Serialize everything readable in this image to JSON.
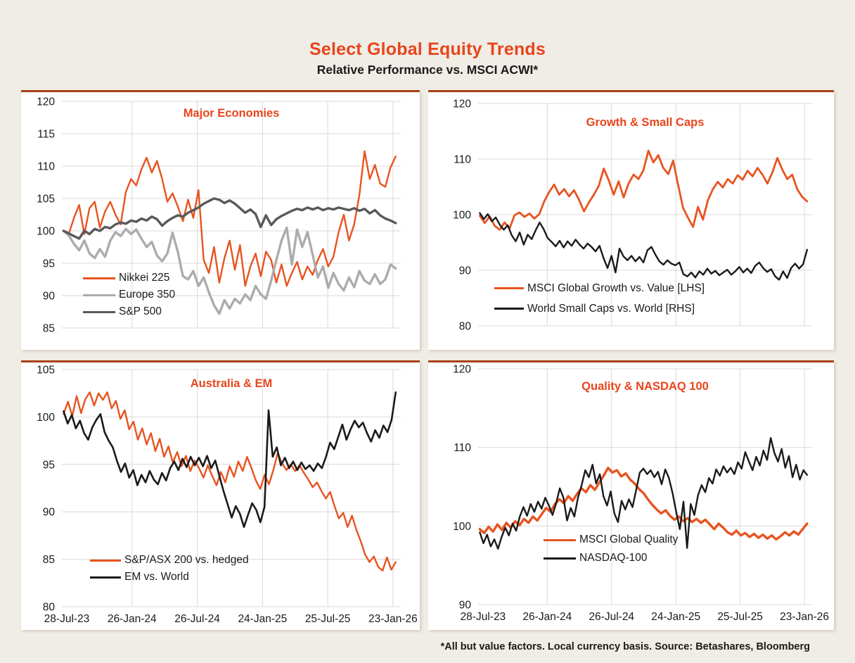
{
  "header": {
    "title": "Select Global Equity Trends",
    "subtitle": "Relative Performance vs. MSCI ACWI*"
  },
  "footnote": "*All but value factors. Local currency basis.  Source: Betashares, Bloomberg",
  "colors": {
    "accent_orange": "#e75420",
    "title_orange": "#e8451c",
    "light_gray": "#acacac",
    "dark_gray": "#595959",
    "black": "#1a1a1a",
    "grid": "#d9d9d9",
    "page_bg": "#f0ede6",
    "panel_bg": "#ffffff",
    "panel_top_border": "#a8421a"
  },
  "x_tick_labels": [
    "28-Jul-23",
    "26-Jan-24",
    "26-Jul-24",
    "24-Jan-25",
    "25-Jul-25",
    "23-Jan-26"
  ],
  "chart_data": [
    {
      "type": "line",
      "title": "Major Economies",
      "ylim": [
        85,
        120
      ],
      "yticks": [
        85,
        90,
        95,
        100,
        105,
        110,
        115,
        120
      ],
      "x_axis_labels_shown": false,
      "grid": true,
      "legend_position": "lower-left",
      "series": [
        {
          "name": "Nikkei 225",
          "color": "#e75420",
          "values": [
            100,
            99.5,
            102,
            104,
            99.5,
            103.5,
            104.5,
            100.5,
            103,
            104.5,
            102.5,
            101,
            106,
            108,
            107,
            109.5,
            111.3,
            109,
            110.8,
            108,
            104.5,
            105.8,
            103.8,
            101.5,
            104.8,
            102,
            106.3,
            95.5,
            93.5,
            97.5,
            92,
            95.8,
            98.5,
            94,
            97.8,
            91.5,
            94.5,
            96.5,
            93,
            96.8,
            95.5,
            92,
            94.8,
            91.5,
            93.5,
            95.2,
            92.5,
            94.5,
            93.2,
            95.5,
            97.2,
            94.5,
            96,
            99.8,
            102.5,
            98.5,
            101,
            105.5,
            112.3,
            108,
            110.2,
            107.3,
            106.8,
            109.8,
            111.5
          ]
        },
        {
          "name": "Europe 350",
          "color": "#acacac",
          "values": [
            100,
            99.3,
            98,
            97,
            98.5,
            96.5,
            95.8,
            97.2,
            96,
            98.5,
            99.8,
            99.2,
            100.3,
            99.5,
            100.2,
            98.8,
            97.5,
            98.3,
            96.2,
            95.3,
            96.5,
            99.7,
            96.8,
            93,
            92.5,
            93.8,
            91.5,
            92.8,
            90.5,
            88.5,
            87.2,
            89.3,
            88,
            89.5,
            88.8,
            90.2,
            89.3,
            91.5,
            90.2,
            89.5,
            92.3,
            95.5,
            98.5,
            100.5,
            94.8,
            100.2,
            97.5,
            99.8,
            96.3,
            92.8,
            94.5,
            91.2,
            93.5,
            91.8,
            90.8,
            92.8,
            91.3,
            93.8,
            92.3,
            91.8,
            93.3,
            91.8,
            92.5,
            94.8,
            94.2
          ]
        },
        {
          "name": "S&P 500",
          "color": "#595959",
          "values": [
            100,
            99.6,
            99.2,
            98.8,
            100,
            99.5,
            100.3,
            100,
            100.6,
            100.4,
            101,
            101.3,
            101.1,
            101.6,
            101.4,
            101.9,
            101.6,
            102.2,
            101.8,
            100.8,
            101.5,
            102,
            102.4,
            102.2,
            102.8,
            103.2,
            103.6,
            104.2,
            104.6,
            105,
            104.8,
            104.3,
            104.7,
            104.2,
            103.5,
            102.8,
            103.3,
            102.6,
            100.6,
            102.4,
            100.9,
            101.8,
            102.3,
            102.7,
            103.1,
            103.4,
            103.2,
            103.6,
            103.3,
            103.6,
            103.2,
            103.5,
            103.3,
            103.6,
            103.4,
            103.2,
            103.5,
            103.1,
            103.4,
            102.7,
            103.2,
            102.4,
            101.9,
            101.6,
            101.2
          ]
        }
      ]
    },
    {
      "type": "line",
      "title": "Growth & Small Caps",
      "ylim": [
        80,
        120
      ],
      "yticks": [
        80,
        90,
        100,
        110,
        120
      ],
      "x_axis_labels_shown": false,
      "grid": true,
      "legend_position": "lower-left",
      "series": [
        {
          "name": "MSCI Global Growth vs. Value [LHS]",
          "color": "#e75420",
          "values": [
            99.8,
            98.5,
            99.7,
            98,
            97.3,
            98.6,
            97.5,
            99.9,
            100.4,
            99.6,
            100.2,
            99.3,
            100.1,
            102.4,
            104.1,
            105.4,
            103.6,
            104.6,
            103.3,
            104.4,
            102.7,
            100.6,
            102.2,
            103.6,
            105.2,
            108.3,
            106.2,
            103.6,
            106,
            103.1,
            105.6,
            107.2,
            106.4,
            108,
            111.5,
            109.4,
            110.7,
            108.4,
            107.3,
            109.7,
            105.3,
            101.2,
            99.4,
            97.8,
            101.4,
            99.1,
            102.6,
            104.6,
            105.9,
            104.9,
            106.4,
            105.6,
            107.1,
            106.3,
            107.9,
            106.9,
            108.4,
            107.2,
            105.6,
            107.6,
            110.2,
            108.1,
            106.4,
            107.2,
            104.6,
            103.2,
            102.4
          ]
        },
        {
          "name": "World Small Caps vs. World [RHS]",
          "color": "#1a1a1a",
          "values": [
            100.3,
            99.2,
            100.1,
            98.8,
            99.5,
            98.2,
            97.3,
            98.1,
            96.3,
            95.2,
            96.8,
            94.6,
            96.4,
            95.6,
            97.2,
            98.6,
            97.4,
            95.8,
            95.1,
            94.3,
            95.3,
            94.1,
            95.2,
            94.4,
            95.5,
            94.6,
            93.9,
            94.8,
            94.2,
            93.4,
            94.4,
            92.2,
            90.4,
            92.6,
            89.6,
            93.9,
            92.5,
            91.8,
            92.6,
            91.6,
            92.4,
            91.4,
            93.6,
            94.2,
            92.8,
            91.6,
            91,
            91.8,
            91.2,
            90.9,
            91.4,
            89.3,
            88.9,
            89.6,
            88.7,
            89.8,
            89.2,
            90.3,
            89.4,
            89.9,
            89.1,
            89.6,
            90.1,
            89.2,
            89.8,
            90.6,
            89.6,
            90.3,
            89.5,
            90.8,
            91.4,
            90.4,
            89.7,
            90.2,
            88.9,
            88.3,
            89.8,
            88.6,
            90.4,
            91.2,
            90.3,
            91.1,
            93.7
          ]
        }
      ]
    },
    {
      "type": "line",
      "title": "Australia & EM",
      "ylim": [
        80,
        105
      ],
      "yticks": [
        80,
        85,
        90,
        95,
        100,
        105
      ],
      "x_axis_labels_shown": true,
      "grid": true,
      "legend_position": "lower-left",
      "series": [
        {
          "name": "S&P/ASX 200 vs. hedged",
          "color": "#e75420",
          "values": [
            100.3,
            101.6,
            100.1,
            102.2,
            100.4,
            101.9,
            102.6,
            101.2,
            102.5,
            101.8,
            102.6,
            100.9,
            101.7,
            99.8,
            100.7,
            98.7,
            99.5,
            97.6,
            98.8,
            97.1,
            98.3,
            96.4,
            97.7,
            95.8,
            96.9,
            95.2,
            96.3,
            94.8,
            95.9,
            94.3,
            95.4,
            94.6,
            93.6,
            94.9,
            93.8,
            92.8,
            94.2,
            93.1,
            94.8,
            93.7,
            95.3,
            94.3,
            95.8,
            94.6,
            93.3,
            92.4,
            93.9,
            92.9,
            94.4,
            96.2,
            95.1,
            94.4,
            95,
            94.3,
            94.9,
            94.1,
            93.4,
            92.6,
            93.1,
            92.2,
            91.4,
            92.1,
            90.6,
            89.3,
            89.9,
            88.4,
            89.6,
            88.1,
            86.9,
            85.5,
            84.7,
            85.3,
            84.2,
            83.8,
            85.2,
            83.9,
            84.7
          ]
        },
        {
          "name": "EM vs. World",
          "color": "#1a1a1a",
          "values": [
            100.6,
            99.3,
            100.2,
            98.8,
            99.6,
            98.3,
            97.6,
            98.9,
            99.7,
            100.3,
            98.4,
            97.5,
            96.8,
            95.4,
            94.2,
            95.1,
            93.6,
            94.4,
            92.8,
            93.9,
            93.1,
            94.3,
            93.4,
            92.9,
            94.1,
            93.3,
            94.6,
            95.3,
            94.4,
            95.6,
            94.7,
            95.8,
            94.9,
            95.7,
            94.8,
            95.9,
            94.6,
            95.4,
            93.8,
            92.2,
            90.8,
            89.4,
            90.6,
            89.8,
            88.4,
            89.7,
            90.9,
            90.2,
            88.9,
            90.5,
            100.7,
            95.8,
            96.8,
            94.9,
            95.7,
            94.6,
            95.3,
            94.4,
            95.2,
            94.5,
            94.9,
            94.3,
            95.1,
            94.6,
            95.8,
            97.3,
            96.6,
            97.9,
            99.2,
            97.6,
            98.7,
            99.6,
            98.9,
            99.4,
            98.3,
            97.4,
            98.6,
            97.8,
            99.1,
            98.4,
            99.7,
            102.6
          ]
        }
      ]
    },
    {
      "type": "line",
      "title": "Quality & NASDAQ 100",
      "ylim": [
        90,
        120
      ],
      "yticks": [
        90,
        100,
        110,
        120
      ],
      "x_axis_labels_shown": true,
      "grid": true,
      "legend_position": "lower-center-left",
      "series": [
        {
          "name": "MSCI Global Quality",
          "color": "#e75420",
          "values": [
            99.6,
            99.1,
            99.9,
            99.3,
            100.2,
            99.5,
            100.4,
            99.8,
            100.6,
            100.1,
            100.9,
            100.4,
            101.2,
            100.7,
            101.5,
            102.3,
            101.8,
            102.8,
            103.4,
            102.9,
            103.8,
            103.2,
            104.1,
            104.8,
            104.3,
            105.2,
            104.6,
            105.5,
            106.4,
            107.4,
            106.8,
            107.1,
            106.3,
            106.7,
            105.9,
            105.4,
            104.7,
            104.2,
            103.4,
            102.7,
            102.1,
            101.6,
            102,
            101.3,
            100.8,
            101.2,
            100.6,
            101,
            100.5,
            100.9,
            100.4,
            100.8,
            100.2,
            99.6,
            100.3,
            99.8,
            99.2,
            98.9,
            99.4,
            98.8,
            99.1,
            98.6,
            99,
            98.5,
            98.9,
            98.4,
            98.8,
            98.3,
            98.7,
            99.2,
            98.8,
            99.3,
            98.9,
            99.6,
            100.3
          ]
        },
        {
          "name": "NASDAQ-100",
          "color": "#1a1a1a",
          "values": [
            99.2,
            97.8,
            98.9,
            97.4,
            98.3,
            97.1,
            98.6,
            99.8,
            98.8,
            100.3,
            99.4,
            101.2,
            102.4,
            101.3,
            102.8,
            101.8,
            103.1,
            102.2,
            103.6,
            102.6,
            101.4,
            102.9,
            104.8,
            103.6,
            100.7,
            102.3,
            101.2,
            103.6,
            105.2,
            107.1,
            106.2,
            107.8,
            105.4,
            106.6,
            103.8,
            102.6,
            104.4,
            101.6,
            100.5,
            103.2,
            102.1,
            103.4,
            102.4,
            104.6,
            106.8,
            107.3,
            106.6,
            107.1,
            106.2,
            106.9,
            105.3,
            107.2,
            106.1,
            104.2,
            101.8,
            99.6,
            103.1,
            97.2,
            102.8,
            101.4,
            103.9,
            105.2,
            104.3,
            106.1,
            105.4,
            107.2,
            106.4,
            107.6,
            106.8,
            107.4,
            106.6,
            108.1,
            107.3,
            109.4,
            108.2,
            107.1,
            108.8,
            107.7,
            109.6,
            108.4,
            111.2,
            109.3,
            108.2,
            109.8,
            107.4,
            108.9,
            106.2,
            107.8,
            105.9,
            107.1,
            106.5
          ]
        }
      ]
    }
  ]
}
